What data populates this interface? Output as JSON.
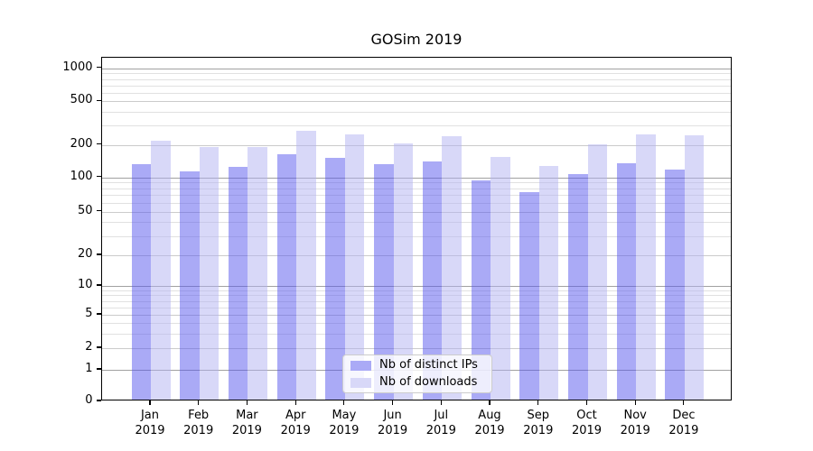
{
  "title": "GOSim 2019",
  "colors": {
    "ips_bar_base": "#5555ed",
    "downloads_bar_base": "#b1b1f1",
    "ips_bar_apparent": "#aaaaf6",
    "downloads_bar_apparent": "#d8d8f8",
    "plot_border": "#000000",
    "grid_major": "#6e6e6e",
    "grid_minor": "#dadada"
  },
  "legend": {
    "items": [
      {
        "label": "Nb of distinct IPs",
        "series": "ips"
      },
      {
        "label": "Nb of downloads",
        "series": "downloads"
      }
    ]
  },
  "y_axis": {
    "tick_labels": [
      "0",
      "1",
      "2",
      "5",
      "10",
      "20",
      "50",
      "100",
      "200",
      "500",
      "1000"
    ]
  },
  "x_axis": {
    "year": "2019",
    "months": [
      "Jan",
      "Feb",
      "Mar",
      "Apr",
      "May",
      "Jun",
      "Jul",
      "Aug",
      "Sep",
      "Oct",
      "Nov",
      "Dec"
    ]
  },
  "chart_data": {
    "type": "bar",
    "title": "GOSim 2019",
    "categories": [
      "Jan 2019",
      "Feb 2019",
      "Mar 2019",
      "Apr 2019",
      "May 2019",
      "Jun 2019",
      "Jul 2019",
      "Aug 2019",
      "Sep 2019",
      "Oct 2019",
      "Nov 2019",
      "Dec 2019"
    ],
    "series": [
      {
        "name": "Nb of distinct IPs",
        "values": [
          128,
          110,
          120,
          157,
          145,
          128,
          136,
          91,
          72,
          103,
          130,
          113
        ]
      },
      {
        "name": "Nb of downloads",
        "values": [
          208,
          182,
          185,
          258,
          240,
          199,
          230,
          150,
          122,
          193,
          238,
          236
        ]
      }
    ],
    "xlabel": "",
    "ylabel": "",
    "yscale": "symlog-like (log above 1, compressed linear below)",
    "y_ticks": [
      0,
      1,
      2,
      5,
      10,
      20,
      50,
      100,
      200,
      500,
      1000
    ],
    "ylim": [
      0,
      1300
    ],
    "grid": true,
    "legend_position": "lower center"
  }
}
